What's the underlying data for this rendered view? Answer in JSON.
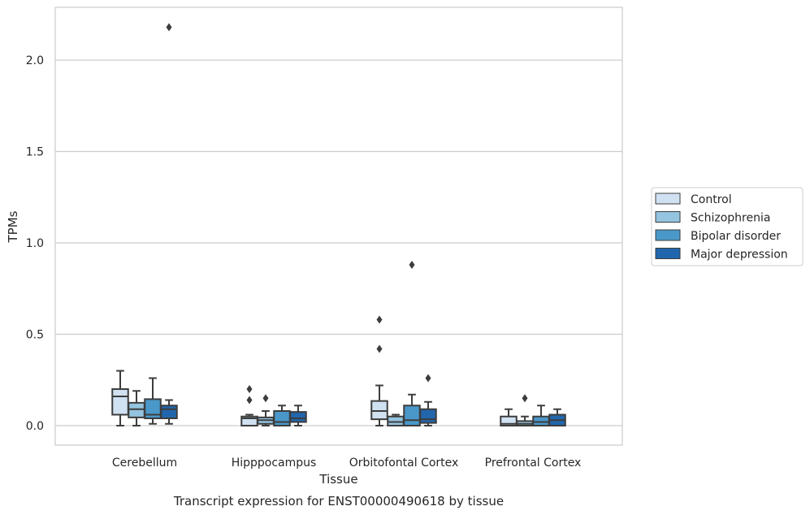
{
  "chart_data": {
    "type": "box",
    "title": "",
    "caption": "Transcript expression for ENST00000490618 by tissue",
    "xlabel": "Tissue",
    "ylabel": "TPMs",
    "ylim": [
      -0.1,
      2.3
    ],
    "yticks": [
      0.0,
      0.5,
      1.0,
      1.5,
      2.0
    ],
    "ytick_labels": [
      "0.0",
      "0.5",
      "1.0",
      "1.5",
      "2.0"
    ],
    "grid": "horizontal",
    "legend_position": "right",
    "categories": [
      "Cerebellum",
      "Hipppocampus",
      "Orbitofontal Cortex",
      "Prefrontal Cortex"
    ],
    "series": [
      {
        "name": "Control",
        "color": "#d0e1f2",
        "boxes": [
          {
            "whislo": 0.0,
            "q1": 0.06,
            "med": 0.16,
            "q3": 0.2,
            "whishi": 0.3,
            "fliers": []
          },
          {
            "whislo": 0.0,
            "q1": 0.0,
            "med": 0.04,
            "q3": 0.05,
            "whishi": 0.06,
            "fliers": [
              0.14,
              0.2
            ]
          },
          {
            "whislo": 0.0,
            "q1": 0.035,
            "med": 0.08,
            "q3": 0.135,
            "whishi": 0.22,
            "fliers": [
              0.42,
              0.58
            ]
          },
          {
            "whislo": 0.0,
            "q1": 0.0,
            "med": 0.01,
            "q3": 0.05,
            "whishi": 0.09,
            "fliers": []
          }
        ]
      },
      {
        "name": "Schizophrenia",
        "color": "#94c4df",
        "boxes": [
          {
            "whislo": 0.0,
            "q1": 0.045,
            "med": 0.09,
            "q3": 0.125,
            "whishi": 0.19,
            "fliers": []
          },
          {
            "whislo": 0.0,
            "q1": 0.01,
            "med": 0.03,
            "q3": 0.045,
            "whishi": 0.08,
            "fliers": [
              0.15
            ]
          },
          {
            "whislo": 0.0,
            "q1": 0.0,
            "med": 0.02,
            "q3": 0.05,
            "whishi": 0.06,
            "fliers": []
          },
          {
            "whislo": 0.0,
            "q1": 0.0,
            "med": 0.01,
            "q3": 0.025,
            "whishi": 0.05,
            "fliers": [
              0.15
            ]
          }
        ]
      },
      {
        "name": "Bipolar disorder",
        "color": "#4a98c9",
        "boxes": [
          {
            "whislo": 0.01,
            "q1": 0.04,
            "med": 0.06,
            "q3": 0.145,
            "whishi": 0.26,
            "fliers": []
          },
          {
            "whislo": 0.0,
            "q1": 0.0,
            "med": 0.02,
            "q3": 0.08,
            "whishi": 0.11,
            "fliers": []
          },
          {
            "whislo": 0.0,
            "q1": 0.0,
            "med": 0.03,
            "q3": 0.11,
            "whishi": 0.17,
            "fliers": [
              0.88
            ]
          },
          {
            "whislo": 0.0,
            "q1": 0.0,
            "med": 0.02,
            "q3": 0.05,
            "whishi": 0.11,
            "fliers": []
          }
        ]
      },
      {
        "name": "Major depression",
        "color": "#2166ac",
        "boxes": [
          {
            "whislo": 0.01,
            "q1": 0.04,
            "med": 0.09,
            "q3": 0.11,
            "whishi": 0.14,
            "fliers": [
              2.18
            ]
          },
          {
            "whislo": 0.0,
            "q1": 0.02,
            "med": 0.04,
            "q3": 0.075,
            "whishi": 0.11,
            "fliers": []
          },
          {
            "whislo": 0.0,
            "q1": 0.015,
            "med": 0.035,
            "q3": 0.09,
            "whishi": 0.13,
            "fliers": [
              0.26
            ]
          },
          {
            "whislo": 0.0,
            "q1": 0.0,
            "med": 0.03,
            "q3": 0.06,
            "whishi": 0.09,
            "fliers": []
          }
        ]
      }
    ]
  }
}
